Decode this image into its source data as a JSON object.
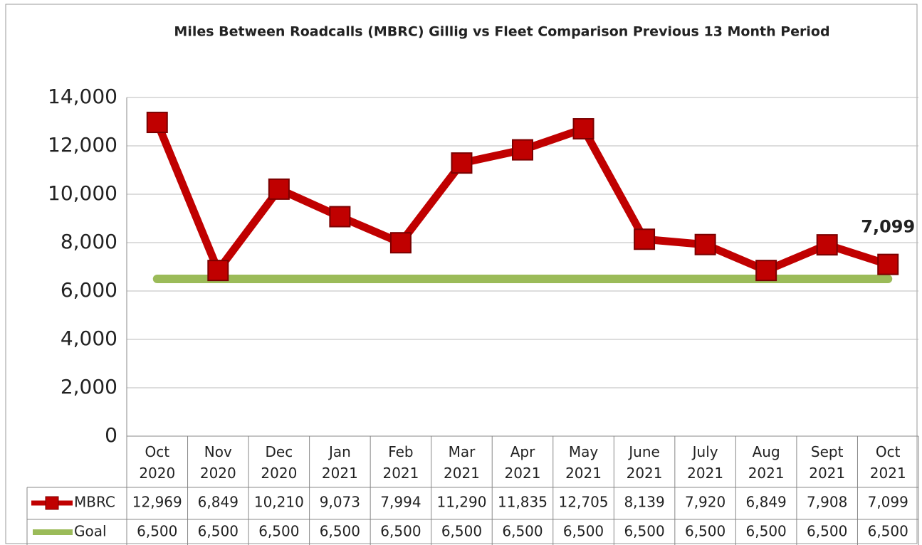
{
  "chart_data": {
    "type": "line",
    "title": "Miles Between Roadcalls (MBRC) Gillig vs Fleet Comparison Previous 13 Month Period",
    "categories": [
      "Oct 2020",
      "Nov 2020",
      "Dec 2020",
      "Jan 2021",
      "Feb 2021",
      "Mar 2021",
      "Apr 2021",
      "May 2021",
      "June 2021",
      "July 2021",
      "Aug 2021",
      "Sept 2021",
      "Oct 2021"
    ],
    "series": [
      {
        "name": "MBRC",
        "color": "#c00000",
        "values": [
          12969,
          6849,
          10210,
          9073,
          7994,
          11290,
          11835,
          12705,
          8139,
          7920,
          6849,
          7908,
          7099
        ],
        "value_labels": [
          "12,969",
          "6,849",
          "10,210",
          "9,073",
          "7,994",
          "11,290",
          "11,835",
          "12,705",
          "8,139",
          "7,920",
          "6,849",
          "7,908",
          "7,099"
        ]
      },
      {
        "name": "Goal",
        "color": "#9bbb59",
        "values": [
          6500,
          6500,
          6500,
          6500,
          6500,
          6500,
          6500,
          6500,
          6500,
          6500,
          6500,
          6500,
          6500
        ],
        "value_labels": [
          "6,500",
          "6,500",
          "6,500",
          "6,500",
          "6,500",
          "6,500",
          "6,500",
          "6,500",
          "6,500",
          "6,500",
          "6,500",
          "6,500",
          "6,500"
        ]
      }
    ],
    "ylim": [
      0,
      14000
    ],
    "yticks": [
      0,
      {
        "value": 2000,
        "label": "2,000"
      },
      {
        "value": 4000,
        "label": "4,000"
      },
      {
        "value": 6000,
        "label": "6,000"
      },
      {
        "value": 8000,
        "label": "8,000"
      },
      {
        "value": 10000,
        "label": "10,000"
      },
      {
        "value": 12000,
        "label": "12,000"
      },
      {
        "value": 14000,
        "label": "14,000"
      }
    ],
    "grid": true
  }
}
